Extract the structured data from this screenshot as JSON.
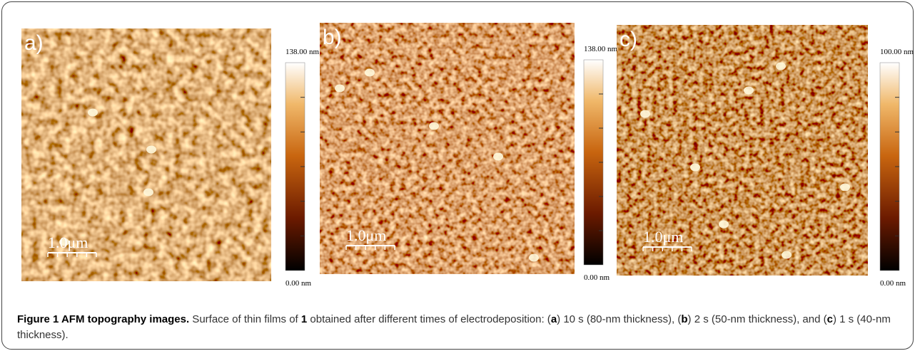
{
  "panels": [
    {
      "label": "a)",
      "scale_bar": "1.0μm",
      "colorbar_max": "138.00 nm",
      "colorbar_min": "0.00 nm"
    },
    {
      "label": "b)",
      "scale_bar": "1.0μm",
      "colorbar_max": "138.00 nm",
      "colorbar_min": "0.00 nm"
    },
    {
      "label": "c)",
      "scale_bar": "1.0μm",
      "colorbar_max": "100.00 nm",
      "colorbar_min": "0.00 nm"
    }
  ],
  "caption": {
    "title": "Figure 1 AFM topography images.",
    "parts": [
      " Surface of thin films of ",
      "1",
      " obtained after different times of electrodeposition: (",
      "a",
      ") 10 s (80-nm thickness), (",
      "b",
      ") 2 s (50-nm thickness), and (",
      "c",
      ") 1 s (40-nm thickness)."
    ]
  }
}
